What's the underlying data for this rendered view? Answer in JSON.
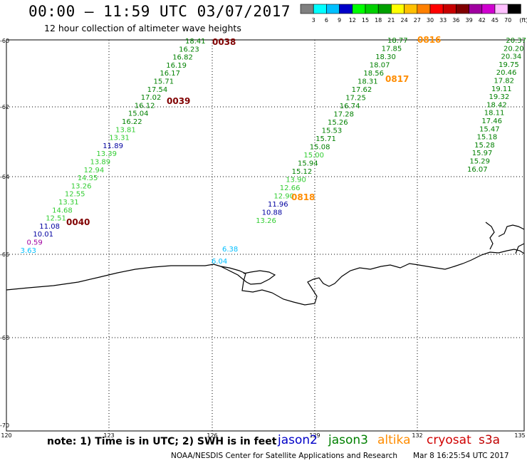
{
  "header": {
    "title": "00:00 – 11:59 UTC 03/07/2017",
    "subtitle": "12 hour collection of altimeter wave heights"
  },
  "colorbar": {
    "unit": "(ft)",
    "colors": [
      "#808080",
      "#00ffff",
      "#00c0ff",
      "#0000c8",
      "#00ff00",
      "#00d000",
      "#00a000",
      "#ffff00",
      "#ffc000",
      "#ff8000",
      "#ff0000",
      "#c80000",
      "#800000",
      "#a000a0",
      "#d000d0",
      "#ffc0ff",
      "#000000"
    ],
    "labels": [
      "3",
      "6",
      "9",
      "12",
      "15",
      "18",
      "21",
      "24",
      "27",
      "30",
      "33",
      "36",
      "39",
      "42",
      "45",
      "70"
    ]
  },
  "axes": {
    "lat_labels": [
      "-60",
      "-62",
      "-64",
      "-66",
      "-68",
      "-70"
    ],
    "lon_labels": [
      "120",
      "123",
      "126",
      "129",
      "132",
      "135"
    ]
  },
  "passes": [
    {
      "id": "0038",
      "color": "#800000"
    },
    {
      "id": "0039",
      "color": "#800000"
    },
    {
      "id": "0040",
      "color": "#800000"
    },
    {
      "id": "0816",
      "color": "#ff8c00"
    },
    {
      "id": "0817",
      "color": "#ff8c00"
    },
    {
      "id": "0818",
      "color": "#ff8c00"
    }
  ],
  "tracks": {
    "track1": [
      "18.41",
      "16.23",
      "16.82",
      "16.19",
      "16.17",
      "15.71",
      "17.54",
      "17.02",
      "16.12",
      "15.04",
      "16.22",
      "13.81",
      "13.31",
      "11.89",
      "13.39",
      "13.89",
      "12.94",
      "14.35",
      "13.26",
      "12.55",
      "13.31",
      "14.68",
      "12.51",
      "11.08",
      "10.01",
      "0.59",
      "3.63"
    ],
    "track1_colors": [
      "#008000",
      "#008000",
      "#008000",
      "#008000",
      "#008000",
      "#008000",
      "#008000",
      "#008000",
      "#008000",
      "#008000",
      "#008000",
      "#32cd32",
      "#32cd32",
      "#0000a0",
      "#32cd32",
      "#32cd32",
      "#32cd32",
      "#32cd32",
      "#32cd32",
      "#32cd32",
      "#32cd32",
      "#32cd32",
      "#32cd32",
      "#0000a0",
      "#0000a0",
      "#a000a0",
      "#00bfff"
    ],
    "track2": [
      "18.77",
      "17.85",
      "18.30",
      "18.07",
      "18.56",
      "18.31",
      "17.62",
      "17.25",
      "16.74",
      "17.28",
      "15.26",
      "15.53",
      "15.71",
      "15.08",
      "15.00",
      "15.94",
      "15.12",
      "13.90",
      "12.66",
      "12.90",
      "11.96",
      "10.88",
      "13.26"
    ],
    "track2_colors": [
      "#008000",
      "#008000",
      "#008000",
      "#008000",
      "#008000",
      "#008000",
      "#008000",
      "#008000",
      "#008000",
      "#008000",
      "#008000",
      "#008000",
      "#008000",
      "#008000",
      "#32cd32",
      "#008000",
      "#008000",
      "#32cd32",
      "#32cd32",
      "#32cd32",
      "#0000a0",
      "#0000a0",
      "#32cd32"
    ],
    "track3": [
      "20.37",
      "20.20",
      "20.34",
      "19.75",
      "20.46",
      "17.82",
      "19.11",
      "19.32",
      "18.42",
      "18.11",
      "17.46",
      "15.47",
      "15.18",
      "15.28",
      "15.97",
      "15.29",
      "16.07"
    ],
    "coastal": [
      "6.38",
      "6.04"
    ]
  },
  "footer": {
    "note": "note: 1) Time is in UTC; 2) SWH is in feet",
    "satellites": [
      {
        "name": "jason2",
        "color": "#0000c8"
      },
      {
        "name": "jason3",
        "color": "#008000"
      },
      {
        "name": "altika",
        "color": "#ff8c00"
      },
      {
        "name": "cryosat",
        "color": "#d00000"
      },
      {
        "name": "s3a",
        "color": "#c00000"
      }
    ],
    "credit": "NOAA/NESDIS Center for Satellite Applications and Research",
    "timestamp": "Mar  8 16:25:54 UTC 2017"
  }
}
